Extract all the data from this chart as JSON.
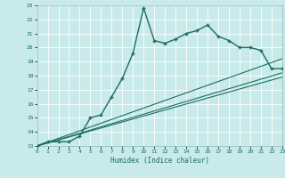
{
  "xlabel": "Humidex (Indice chaleur)",
  "bg_color": "#c8eaea",
  "line_color": "#1a6e60",
  "grid_color": "#ffffff",
  "xlim": [
    0,
    23
  ],
  "ylim": [
    13,
    23
  ],
  "xticks": [
    0,
    1,
    2,
    3,
    4,
    5,
    6,
    7,
    8,
    9,
    10,
    11,
    12,
    13,
    14,
    15,
    16,
    17,
    18,
    19,
    20,
    21,
    22,
    23
  ],
  "yticks": [
    13,
    14,
    15,
    16,
    17,
    18,
    19,
    20,
    21,
    22,
    23
  ],
  "series_main": {
    "x": [
      0,
      1,
      2,
      3,
      4,
      5,
      6,
      7,
      8,
      9,
      10,
      11,
      12,
      13,
      14,
      15,
      16,
      17,
      18,
      19,
      20,
      21,
      22,
      23
    ],
    "y": [
      13,
      13.3,
      13.3,
      13.3,
      13.7,
      15.0,
      15.2,
      16.5,
      17.8,
      19.6,
      22.8,
      20.5,
      20.3,
      20.6,
      21.0,
      21.2,
      21.6,
      20.8,
      20.5,
      20.0,
      20.0,
      19.8,
      18.5,
      18.5
    ]
  },
  "series_line1": {
    "x": [
      0,
      23
    ],
    "y": [
      13,
      19.2
    ]
  },
  "series_line2": {
    "x": [
      0,
      23
    ],
    "y": [
      13,
      18.2
    ]
  },
  "series_line3": {
    "x": [
      0,
      23
    ],
    "y": [
      13,
      17.9
    ]
  }
}
